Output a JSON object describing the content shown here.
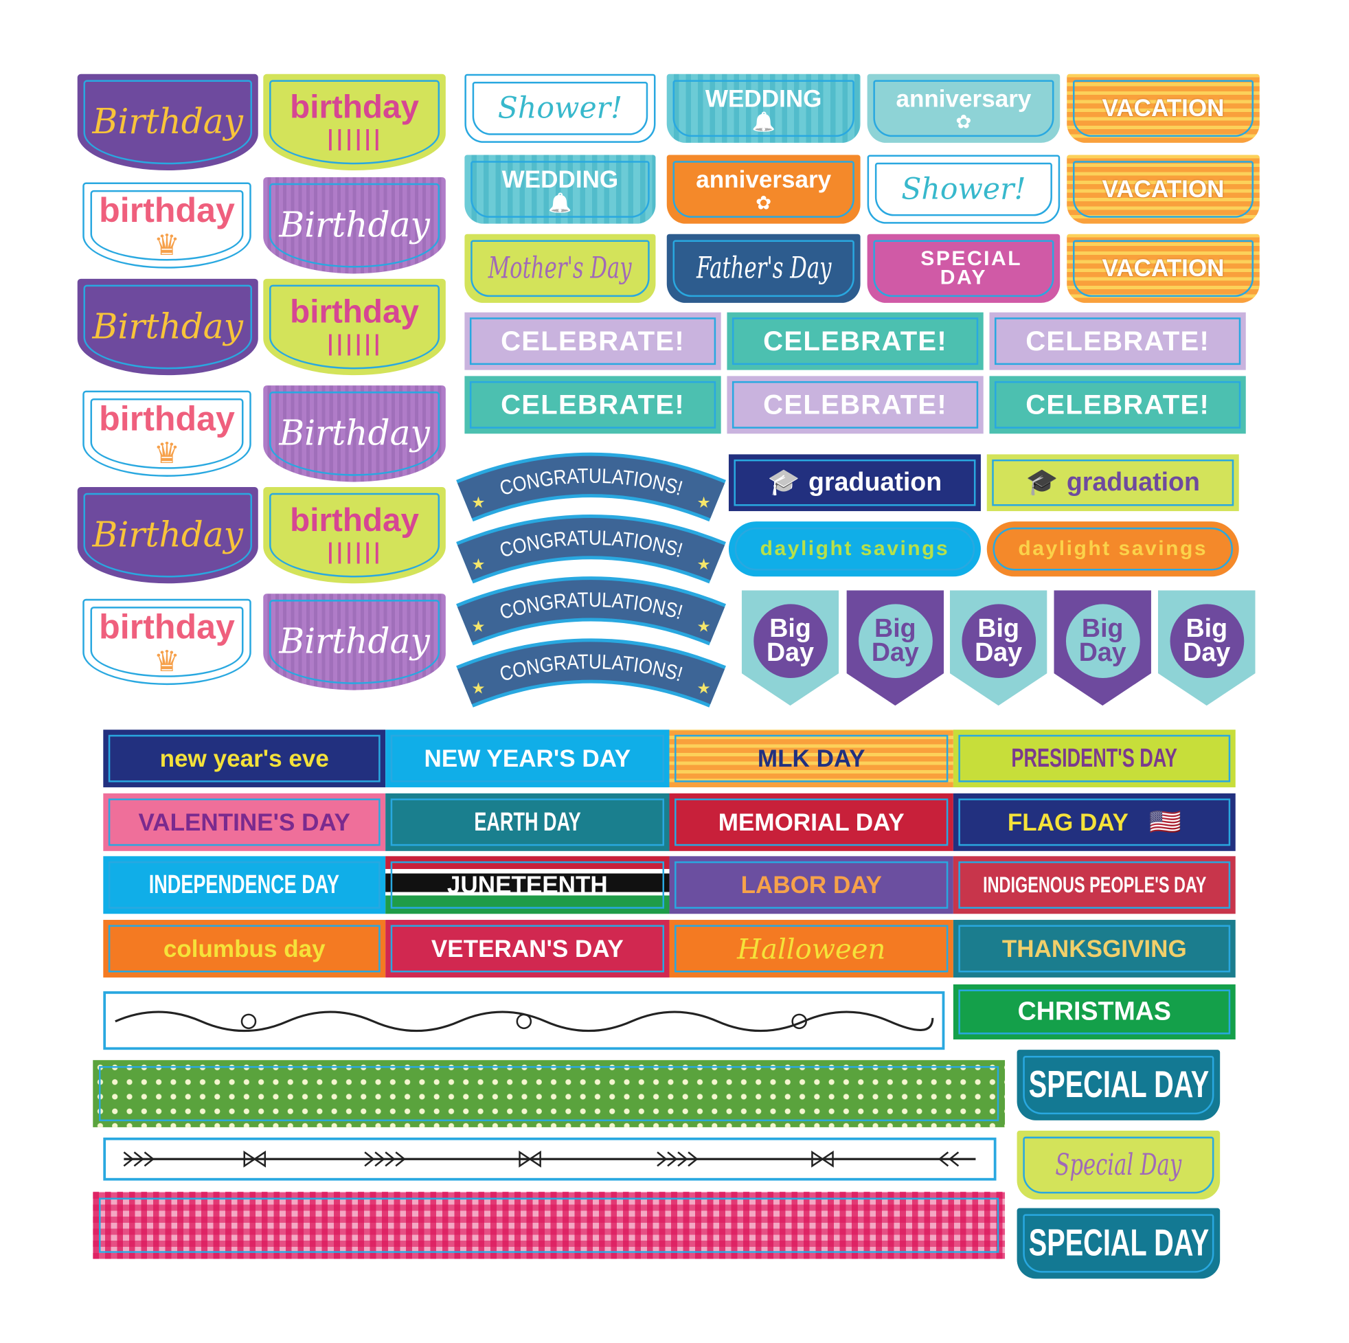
{
  "birthday_column": [
    "Birthday",
    "birthday",
    "birthday",
    "Birthday",
    "Birthday",
    "birthday",
    "birthday",
    "Birthday",
    "Birthday",
    "birthday",
    "birthday",
    "Birthday"
  ],
  "tabs_grid": [
    "Shower!",
    "WEDDING",
    "anniversary",
    "VACATION",
    "WEDDING",
    "anniversary",
    "Shower!",
    "VACATION",
    "Mother's Day",
    "Father's Day",
    "SPECIAL DAY",
    "VACATION"
  ],
  "celebrate": [
    "CELEBRATE!",
    "CELEBRATE!",
    "CELEBRATE!",
    "CELEBRATE!",
    "CELEBRATE!",
    "CELEBRATE!"
  ],
  "congratulations": [
    "CONGRATULATIONS!",
    "CONGRATULATIONS!",
    "CONGRATULATIONS!",
    "CONGRATULATIONS!"
  ],
  "graduation": [
    "graduation",
    "graduation"
  ],
  "daylight_savings": [
    "daylight savings",
    "daylight savings"
  ],
  "big_day": [
    "Big Day",
    "Big Day",
    "Big Day",
    "Big Day",
    "Big Day"
  ],
  "holidays": [
    "new year's eve",
    "NEW YEAR'S DAY",
    "MLK DAY",
    "PRESIDENT'S DAY",
    "VALENTINE'S DAY",
    "EARTH DAY",
    "MEMORIAL DAY",
    "FLAG DAY",
    "INDEPENDENCE DAY",
    "JUNETEENTH",
    "LABOR DAY",
    "INDIGENOUS PEOPLE'S DAY",
    "columbus day",
    "VETERAN'S DAY",
    "Halloween",
    "THANKSGIVING"
  ],
  "christmas": "CHRISTMAS",
  "special_day": [
    "SPECIAL DAY",
    "Special Day",
    "SPECIAL DAY"
  ],
  "colors": {
    "border_blue": "#29a8e0",
    "purple": "#6e4a9e",
    "lime": "#d3e35a",
    "teal": "#4cc0b0",
    "navy": "#22307f",
    "orange": "#f4892a",
    "pink": "#ef5f7d"
  }
}
